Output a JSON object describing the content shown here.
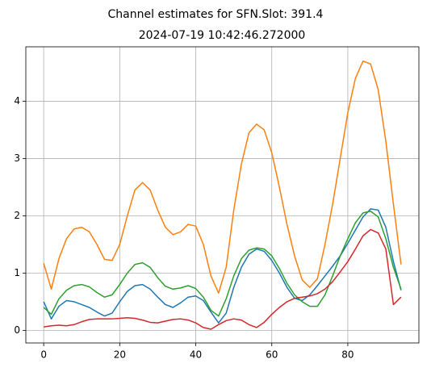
{
  "chart_data": {
    "type": "line",
    "title": "Channel estimates for SFN.Slot: 391.4",
    "subtitle": "2024-07-19 10:42:46.272000",
    "x": [
      0,
      2,
      4,
      6,
      8,
      10,
      12,
      14,
      16,
      18,
      20,
      22,
      24,
      26,
      28,
      30,
      32,
      34,
      36,
      38,
      40,
      42,
      44,
      46,
      48,
      50,
      52,
      54,
      56,
      58,
      60,
      62,
      64,
      66,
      68,
      70,
      72,
      74,
      76,
      78,
      80,
      82,
      84,
      86,
      88,
      90,
      92,
      94
    ],
    "series": [
      {
        "color": "#1f77b4",
        "values": [
          0.5,
          0.2,
          0.42,
          0.52,
          0.5,
          0.45,
          0.4,
          0.32,
          0.25,
          0.3,
          0.5,
          0.68,
          0.78,
          0.8,
          0.72,
          0.58,
          0.45,
          0.4,
          0.48,
          0.58,
          0.6,
          0.52,
          0.32,
          0.13,
          0.3,
          0.75,
          1.1,
          1.33,
          1.42,
          1.38,
          1.22,
          1.0,
          0.75,
          0.56,
          0.52,
          0.62,
          0.78,
          0.95,
          1.12,
          1.3,
          1.52,
          1.75,
          1.98,
          2.12,
          2.1,
          1.8,
          1.2,
          0.7
        ]
      },
      {
        "color": "#ff7f0e",
        "values": [
          1.17,
          0.72,
          1.25,
          1.6,
          1.77,
          1.8,
          1.72,
          1.5,
          1.24,
          1.22,
          1.5,
          2.0,
          2.45,
          2.58,
          2.45,
          2.1,
          1.8,
          1.67,
          1.72,
          1.85,
          1.82,
          1.5,
          0.95,
          0.65,
          1.1,
          2.1,
          2.9,
          3.45,
          3.6,
          3.5,
          3.1,
          2.5,
          1.85,
          1.3,
          0.88,
          0.75,
          0.9,
          1.5,
          2.2,
          3.0,
          3.8,
          4.4,
          4.7,
          4.65,
          4.2,
          3.3,
          2.2,
          1.15
        ]
      },
      {
        "color": "#2ca02c",
        "values": [
          0.4,
          0.28,
          0.55,
          0.7,
          0.78,
          0.8,
          0.76,
          0.66,
          0.58,
          0.62,
          0.8,
          1.0,
          1.15,
          1.18,
          1.1,
          0.92,
          0.77,
          0.72,
          0.74,
          0.78,
          0.73,
          0.58,
          0.35,
          0.25,
          0.55,
          0.95,
          1.25,
          1.4,
          1.44,
          1.42,
          1.3,
          1.08,
          0.82,
          0.62,
          0.5,
          0.42,
          0.42,
          0.62,
          0.95,
          1.3,
          1.6,
          1.88,
          2.05,
          2.08,
          1.98,
          1.6,
          1.1,
          0.72
        ]
      },
      {
        "color": "#d62728",
        "values": [
          0.06,
          0.08,
          0.09,
          0.08,
          0.1,
          0.15,
          0.19,
          0.2,
          0.2,
          0.2,
          0.21,
          0.22,
          0.21,
          0.18,
          0.14,
          0.13,
          0.16,
          0.19,
          0.2,
          0.18,
          0.13,
          0.05,
          0.02,
          0.1,
          0.17,
          0.2,
          0.18,
          0.1,
          0.05,
          0.14,
          0.28,
          0.4,
          0.5,
          0.56,
          0.58,
          0.6,
          0.64,
          0.72,
          0.85,
          1.02,
          1.2,
          1.42,
          1.65,
          1.76,
          1.7,
          1.42,
          0.45,
          0.58
        ]
      }
    ],
    "xlim": [
      -4.7,
      98.7
    ],
    "xticks": [
      0,
      20,
      40,
      60,
      80
    ],
    "ylim": [
      -0.22,
      4.95
    ],
    "yticks": [
      0,
      1,
      2,
      3,
      4
    ],
    "grid": true
  }
}
